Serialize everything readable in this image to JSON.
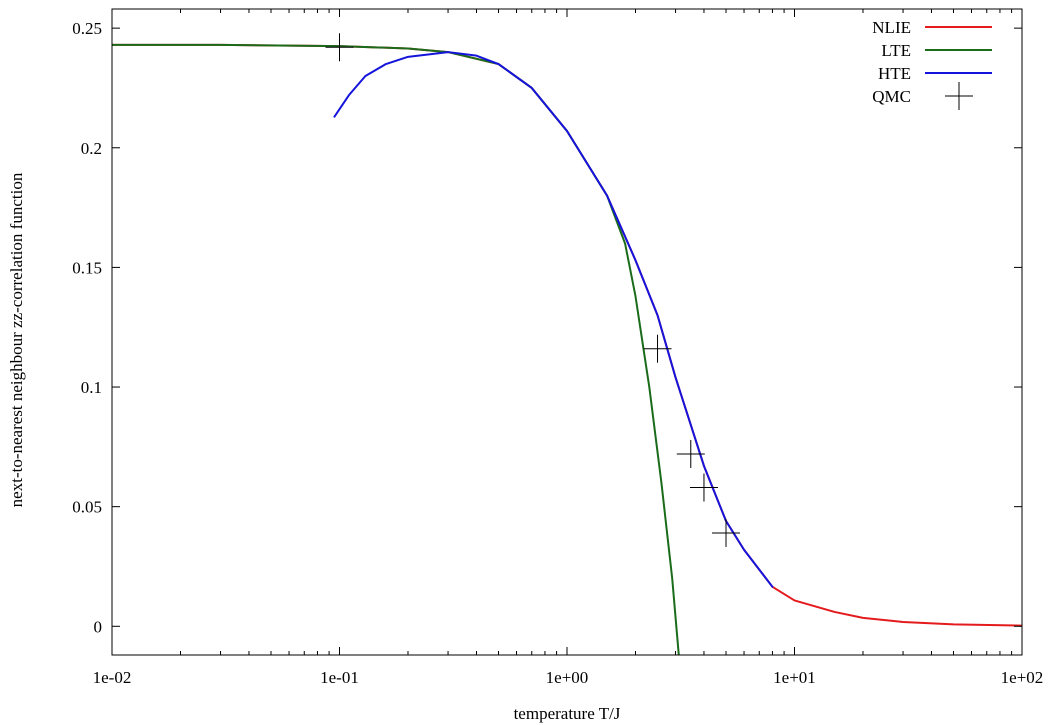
{
  "chart_data": {
    "type": "line",
    "title": "",
    "xlabel": "temperature T/J",
    "ylabel": "next-to-nearest neighbour zz-correlation function",
    "x_scale": "log",
    "xlim": [
      0.01,
      100
    ],
    "ylim": [
      -0.012,
      0.258
    ],
    "grid": false,
    "legend_position": "top-right",
    "x_ticks": [
      {
        "value": 0.01,
        "label": "1e-02"
      },
      {
        "value": 0.1,
        "label": "1e-01"
      },
      {
        "value": 1,
        "label": "1e+00"
      },
      {
        "value": 10,
        "label": "1e+01"
      },
      {
        "value": 100,
        "label": "1e+02"
      }
    ],
    "y_ticks": [
      {
        "value": 0,
        "label": "0"
      },
      {
        "value": 0.05,
        "label": "0.05"
      },
      {
        "value": 0.1,
        "label": "0.1"
      },
      {
        "value": 0.15,
        "label": "0.15"
      },
      {
        "value": 0.2,
        "label": "0.2"
      },
      {
        "value": 0.25,
        "label": "0.25"
      }
    ],
    "series": [
      {
        "name": "NLIE",
        "color": "#e41a1c",
        "style": "line",
        "points": [
          [
            0.01,
            0.243
          ],
          [
            0.03,
            0.243
          ],
          [
            0.1,
            0.2425
          ],
          [
            0.2,
            0.2415
          ],
          [
            0.3,
            0.24
          ],
          [
            0.5,
            0.235
          ],
          [
            0.7,
            0.225
          ],
          [
            1.0,
            0.207
          ],
          [
            1.5,
            0.18
          ],
          [
            2.0,
            0.153
          ],
          [
            2.5,
            0.13
          ],
          [
            3.0,
            0.104
          ],
          [
            4.0,
            0.067
          ],
          [
            5.0,
            0.044
          ],
          [
            6.0,
            0.032
          ],
          [
            8.0,
            0.0165
          ],
          [
            10.0,
            0.0108
          ],
          [
            15.0,
            0.006
          ],
          [
            20.0,
            0.0035
          ],
          [
            30.0,
            0.0018
          ],
          [
            50.0,
            0.0008
          ],
          [
            100.0,
            0.0003
          ]
        ]
      },
      {
        "name": "LTE",
        "color": "#1a6b1a",
        "style": "line",
        "points": [
          [
            0.01,
            0.243
          ],
          [
            0.03,
            0.243
          ],
          [
            0.1,
            0.2425
          ],
          [
            0.2,
            0.2415
          ],
          [
            0.3,
            0.24
          ],
          [
            0.5,
            0.235
          ],
          [
            0.7,
            0.225
          ],
          [
            1.0,
            0.207
          ],
          [
            1.5,
            0.18
          ],
          [
            1.8,
            0.16
          ],
          [
            2.0,
            0.138
          ],
          [
            2.3,
            0.1
          ],
          [
            2.6,
            0.06
          ],
          [
            2.9,
            0.02
          ],
          [
            3.1,
            -0.012
          ]
        ]
      },
      {
        "name": "HTE",
        "color": "#1414dc",
        "style": "line",
        "points": [
          [
            0.095,
            0.213
          ],
          [
            0.11,
            0.222
          ],
          [
            0.13,
            0.23
          ],
          [
            0.16,
            0.235
          ],
          [
            0.2,
            0.238
          ],
          [
            0.3,
            0.24
          ],
          [
            0.4,
            0.2385
          ],
          [
            0.5,
            0.235
          ],
          [
            0.7,
            0.225
          ],
          [
            1.0,
            0.207
          ],
          [
            1.5,
            0.18
          ],
          [
            2.0,
            0.153
          ],
          [
            2.5,
            0.13
          ],
          [
            3.0,
            0.104
          ],
          [
            4.0,
            0.067
          ],
          [
            5.0,
            0.044
          ],
          [
            6.0,
            0.032
          ],
          [
            8.0,
            0.0165
          ]
        ]
      },
      {
        "name": "QMC",
        "color": "#000000",
        "style": "marker-plus",
        "points": [
          [
            0.1,
            0.242
          ],
          [
            2.5,
            0.116
          ],
          [
            3.5,
            0.072
          ],
          [
            4.0,
            0.058
          ],
          [
            5.0,
            0.039
          ]
        ]
      }
    ]
  }
}
